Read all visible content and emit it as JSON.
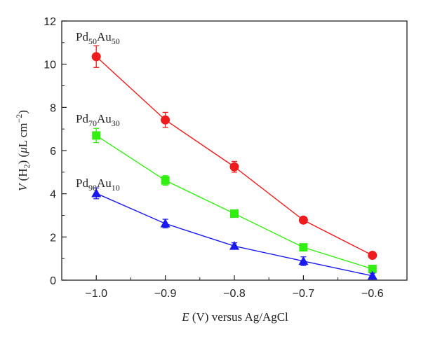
{
  "chart_data": {
    "type": "line",
    "xlabel": {
      "italic": "E",
      "rest": " (V) versus Ag/AgCl"
    },
    "ylabel": {
      "italic": "V",
      "rest_a": " (H",
      "sub": "2",
      "rest_b": ") (",
      "mu": "μ",
      "unit": "L cm",
      "sup": "−2",
      "close": ")"
    },
    "xlim": [
      -1.05,
      -0.55
    ],
    "ylim": [
      0,
      12
    ],
    "x_ticks": [
      -1.0,
      -0.9,
      -0.8,
      -0.7,
      -0.6
    ],
    "x_tick_labels": [
      "−1.0",
      "−0.9",
      "−0.8",
      "−0.7",
      "−0.6"
    ],
    "y_ticks": [
      0,
      2,
      4,
      6,
      8,
      10,
      12
    ],
    "y_tick_labels": [
      "0",
      "2",
      "4",
      "6",
      "8",
      "10",
      "12"
    ],
    "grid": false,
    "x": [
      -1.0,
      -0.9,
      -0.8,
      -0.7,
      -0.6
    ],
    "series": [
      {
        "name_parts": {
          "a": "Pd",
          "a_sub": "50",
          "b": "Au",
          "b_sub": "50"
        },
        "color": "#ee1c1c",
        "marker": "circle",
        "values": [
          10.35,
          7.42,
          5.25,
          2.78,
          1.15
        ],
        "errors": [
          0.5,
          0.35,
          0.25,
          0.1,
          0.1
        ]
      },
      {
        "name_parts": {
          "a": "Pd",
          "a_sub": "70",
          "b": "Au",
          "b_sub": "30"
        },
        "color": "#33ee11",
        "marker": "square",
        "values": [
          6.7,
          4.62,
          3.08,
          1.52,
          0.52
        ],
        "errors": [
          0.33,
          0.22,
          0.1,
          0.1,
          0.1
        ]
      },
      {
        "name_parts": {
          "a": "Pd",
          "a_sub": "90",
          "b": "Au",
          "b_sub": "10"
        },
        "color": "#1a1aee",
        "marker": "triangle",
        "values": [
          4.02,
          2.62,
          1.58,
          0.88,
          0.2
        ],
        "errors": [
          0.25,
          0.2,
          0.15,
          0.2,
          0.12
        ]
      }
    ]
  }
}
